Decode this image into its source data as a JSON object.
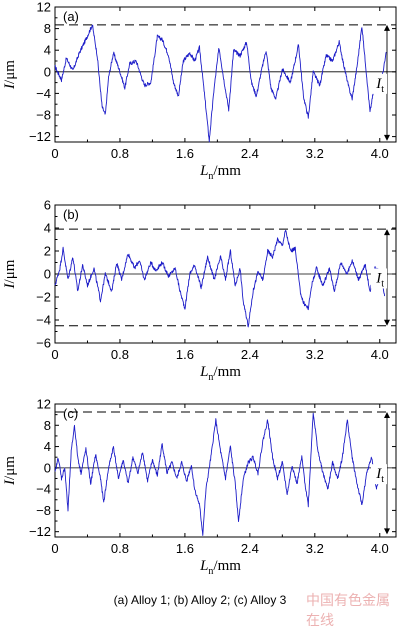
{
  "caption": "(a) Alloy 1; (b) Alloy 2; (c) Alloy 3",
  "watermark": "中国有色金属在线",
  "colors": {
    "trace": "#1c1cc8",
    "axis": "#000000"
  },
  "chart_data": [
    {
      "type": "line",
      "panel_label": "(a)",
      "xlabel_main": "L",
      "xlabel_sub": "n",
      "xlabel_unit": "/mm",
      "ylabel_main": "I",
      "ylabel_unit": "/μm",
      "xlim": [
        0,
        4.2
      ],
      "ylim": [
        -13,
        12
      ],
      "xticks": [
        "0",
        "0.8",
        "1.6",
        "2.4",
        "3.2",
        "4.0"
      ],
      "yticks": [
        "12",
        "8",
        "4",
        "0",
        "−4",
        "−8",
        "−12"
      ],
      "ytick_values": [
        12,
        8,
        4,
        0,
        -4,
        -8,
        -12
      ],
      "upper_dashed": 8.7,
      "lower_dashed": null,
      "it_label_main": "I",
      "it_label_sub": "t",
      "it_span": [
        8.7,
        -12.8
      ],
      "x_end": 4.08,
      "keypoints": [
        [
          0.0,
          1.0
        ],
        [
          0.08,
          -1.5
        ],
        [
          0.14,
          2.5
        ],
        [
          0.22,
          0.2
        ],
        [
          0.3,
          3.5
        ],
        [
          0.38,
          6.0
        ],
        [
          0.46,
          8.7
        ],
        [
          0.52,
          3.0
        ],
        [
          0.58,
          -6.5
        ],
        [
          0.62,
          -8.0
        ],
        [
          0.66,
          -1.0
        ],
        [
          0.72,
          3.5
        ],
        [
          0.8,
          0.0
        ],
        [
          0.86,
          -3.0
        ],
        [
          0.92,
          1.5
        ],
        [
          1.0,
          2.0
        ],
        [
          1.1,
          -2.5
        ],
        [
          1.18,
          -2.0
        ],
        [
          1.26,
          6.5
        ],
        [
          1.32,
          6.0
        ],
        [
          1.4,
          3.0
        ],
        [
          1.46,
          -2.0
        ],
        [
          1.52,
          -4.5
        ],
        [
          1.58,
          2.0
        ],
        [
          1.66,
          3.5
        ],
        [
          1.72,
          2.0
        ],
        [
          1.78,
          4.5
        ],
        [
          1.84,
          -4.0
        ],
        [
          1.9,
          -12.8
        ],
        [
          1.96,
          -3.0
        ],
        [
          2.02,
          4.5
        ],
        [
          2.08,
          -1.5
        ],
        [
          2.14,
          -7.0
        ],
        [
          2.2,
          4.0
        ],
        [
          2.28,
          3.0
        ],
        [
          2.36,
          5.5
        ],
        [
          2.42,
          -2.0
        ],
        [
          2.48,
          -4.5
        ],
        [
          2.54,
          0.0
        ],
        [
          2.6,
          4.0
        ],
        [
          2.66,
          -3.0
        ],
        [
          2.72,
          -5.0
        ],
        [
          2.8,
          0.5
        ],
        [
          2.9,
          -2.0
        ],
        [
          3.0,
          5.0
        ],
        [
          3.06,
          -4.5
        ],
        [
          3.12,
          -8.5
        ],
        [
          3.18,
          0.0
        ],
        [
          3.26,
          -2.5
        ],
        [
          3.34,
          3.0
        ],
        [
          3.42,
          2.0
        ],
        [
          3.5,
          5.5
        ],
        [
          3.56,
          1.0
        ],
        [
          3.62,
          -3.0
        ],
        [
          3.66,
          -5.0
        ],
        [
          3.72,
          1.0
        ],
        [
          3.78,
          8.5
        ],
        [
          3.84,
          -1.0
        ],
        [
          3.88,
          -7.5
        ],
        [
          3.94,
          -2.0
        ],
        [
          4.0,
          -3.5
        ],
        [
          4.04,
          0.0
        ],
        [
          4.08,
          3.5
        ]
      ]
    },
    {
      "type": "line",
      "panel_label": "(b)",
      "xlabel_main": "L",
      "xlabel_sub": "n",
      "xlabel_unit": "/mm",
      "ylabel_main": "I",
      "ylabel_unit": "/μm",
      "xlim": [
        0,
        4.2
      ],
      "ylim": [
        -6,
        6
      ],
      "xticks": [
        "0",
        "0.8",
        "1.6",
        "2.4",
        "3.2",
        "4.0"
      ],
      "yticks": [
        "6",
        "4",
        "2",
        "0",
        "−2",
        "−4",
        "−6"
      ],
      "ytick_values": [
        6,
        4,
        2,
        0,
        -2,
        -4,
        -6
      ],
      "upper_dashed": 3.9,
      "lower_dashed": -4.5,
      "it_label_main": "I",
      "it_label_sub": "t",
      "it_span": [
        3.9,
        -4.5
      ],
      "x_end": 4.06,
      "keypoints": [
        [
          0.0,
          -1.0
        ],
        [
          0.06,
          0.5
        ],
        [
          0.1,
          2.2
        ],
        [
          0.16,
          -0.5
        ],
        [
          0.22,
          1.5
        ],
        [
          0.28,
          -1.5
        ],
        [
          0.34,
          0.8
        ],
        [
          0.4,
          -1.0
        ],
        [
          0.48,
          0.5
        ],
        [
          0.56,
          -2.3
        ],
        [
          0.62,
          0.0
        ],
        [
          0.7,
          -1.5
        ],
        [
          0.76,
          1.0
        ],
        [
          0.82,
          -0.5
        ],
        [
          0.9,
          1.8
        ],
        [
          0.98,
          0.5
        ],
        [
          1.04,
          1.2
        ],
        [
          1.1,
          -0.5
        ],
        [
          1.18,
          1.0
        ],
        [
          1.24,
          0.3
        ],
        [
          1.32,
          1.0
        ],
        [
          1.4,
          -0.2
        ],
        [
          1.48,
          0.5
        ],
        [
          1.54,
          -1.5
        ],
        [
          1.6,
          -3.0
        ],
        [
          1.66,
          0.0
        ],
        [
          1.72,
          0.8
        ],
        [
          1.8,
          -1.2
        ],
        [
          1.88,
          1.5
        ],
        [
          1.96,
          -0.5
        ],
        [
          2.04,
          1.5
        ],
        [
          2.1,
          -0.5
        ],
        [
          2.16,
          2.0
        ],
        [
          2.22,
          -1.0
        ],
        [
          2.28,
          0.5
        ],
        [
          2.32,
          -2.5
        ],
        [
          2.38,
          -4.5
        ],
        [
          2.44,
          -1.5
        ],
        [
          2.5,
          0.2
        ],
        [
          2.56,
          -0.5
        ],
        [
          2.62,
          2.0
        ],
        [
          2.68,
          1.5
        ],
        [
          2.74,
          3.0
        ],
        [
          2.8,
          2.5
        ],
        [
          2.84,
          3.8
        ],
        [
          2.9,
          2.0
        ],
        [
          2.96,
          2.2
        ],
        [
          3.02,
          -1.5
        ],
        [
          3.06,
          -2.5
        ],
        [
          3.12,
          -3.0
        ],
        [
          3.16,
          -1.0
        ],
        [
          3.22,
          0.5
        ],
        [
          3.3,
          -1.0
        ],
        [
          3.38,
          0.5
        ],
        [
          3.44,
          -1.5
        ],
        [
          3.52,
          1.0
        ],
        [
          3.6,
          0.0
        ],
        [
          3.66,
          1.2
        ],
        [
          3.74,
          -0.5
        ],
        [
          3.82,
          0.8
        ],
        [
          3.88,
          -1.5
        ],
        [
          3.94,
          0.5
        ],
        [
          4.0,
          0.2
        ],
        [
          4.06,
          -1.8
        ]
      ]
    },
    {
      "type": "line",
      "panel_label": "(c)",
      "xlabel_main": "L",
      "xlabel_sub": "n",
      "xlabel_unit": "/mm",
      "ylabel_main": "I",
      "ylabel_unit": "/μm",
      "xlim": [
        0,
        4.2
      ],
      "ylim": [
        -13,
        12
      ],
      "xticks": [
        "0",
        "0.8",
        "1.6",
        "2.4",
        "3.2",
        "4.0"
      ],
      "yticks": [
        "12",
        "8",
        "4",
        "0",
        "−4",
        "−8",
        "−12"
      ],
      "ytick_values": [
        12,
        8,
        4,
        0,
        -4,
        -8,
        -12
      ],
      "upper_dashed": 10.5,
      "lower_dashed": null,
      "it_label_main": "I",
      "it_label_sub": "t",
      "it_span": [
        10.5,
        -12.5
      ],
      "x_end": 4.06,
      "keypoints": [
        [
          0.0,
          -1.0
        ],
        [
          0.04,
          2.0
        ],
        [
          0.08,
          -2.0
        ],
        [
          0.12,
          0.0
        ],
        [
          0.16,
          -8.0
        ],
        [
          0.2,
          3.0
        ],
        [
          0.24,
          8.0
        ],
        [
          0.28,
          2.0
        ],
        [
          0.32,
          -1.0
        ],
        [
          0.38,
          3.5
        ],
        [
          0.44,
          -3.0
        ],
        [
          0.5,
          2.5
        ],
        [
          0.56,
          -2.0
        ],
        [
          0.6,
          -6.5
        ],
        [
          0.66,
          0.0
        ],
        [
          0.72,
          4.0
        ],
        [
          0.78,
          -2.0
        ],
        [
          0.84,
          1.5
        ],
        [
          0.9,
          -3.0
        ],
        [
          0.96,
          2.0
        ],
        [
          1.02,
          -1.0
        ],
        [
          1.08,
          3.0
        ],
        [
          1.14,
          -2.5
        ],
        [
          1.2,
          1.5
        ],
        [
          1.26,
          -1.5
        ],
        [
          1.32,
          4.5
        ],
        [
          1.38,
          -1.0
        ],
        [
          1.44,
          1.0
        ],
        [
          1.5,
          -2.0
        ],
        [
          1.56,
          1.0
        ],
        [
          1.62,
          -2.5
        ],
        [
          1.68,
          0.5
        ],
        [
          1.72,
          -4.0
        ],
        [
          1.78,
          -7.0
        ],
        [
          1.82,
          -12.5
        ],
        [
          1.86,
          -4.0
        ],
        [
          1.92,
          2.0
        ],
        [
          1.98,
          9.0
        ],
        [
          2.04,
          3.0
        ],
        [
          2.1,
          -2.0
        ],
        [
          2.16,
          4.0
        ],
        [
          2.22,
          -3.0
        ],
        [
          2.26,
          -10.0
        ],
        [
          2.32,
          -2.0
        ],
        [
          2.38,
          1.0
        ],
        [
          2.44,
          2.0
        ],
        [
          2.5,
          -1.0
        ],
        [
          2.56,
          5.0
        ],
        [
          2.62,
          9.0
        ],
        [
          2.68,
          2.0
        ],
        [
          2.74,
          -2.0
        ],
        [
          2.8,
          1.0
        ],
        [
          2.86,
          -5.0
        ],
        [
          2.92,
          0.5
        ],
        [
          2.98,
          -3.0
        ],
        [
          3.04,
          2.0
        ],
        [
          3.08,
          -3.0
        ],
        [
          3.12,
          -7.0
        ],
        [
          3.18,
          10.5
        ],
        [
          3.24,
          3.0
        ],
        [
          3.3,
          -1.0
        ],
        [
          3.36,
          -4.0
        ],
        [
          3.42,
          1.0
        ],
        [
          3.48,
          -2.0
        ],
        [
          3.54,
          2.0
        ],
        [
          3.6,
          9.0
        ],
        [
          3.66,
          2.0
        ],
        [
          3.72,
          -3.0
        ],
        [
          3.78,
          -7.0
        ],
        [
          3.84,
          -1.0
        ],
        [
          3.9,
          2.0
        ],
        [
          3.96,
          -4.0
        ],
        [
          4.02,
          0.0
        ],
        [
          4.06,
          -3.0
        ]
      ]
    }
  ]
}
